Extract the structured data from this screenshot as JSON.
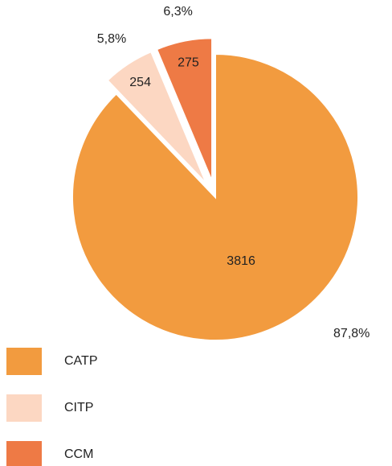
{
  "chart_data": {
    "type": "pie",
    "categories": [
      "CATP",
      "CITP",
      "CCM"
    ],
    "values": [
      3816,
      254,
      275
    ],
    "percentages": [
      87.8,
      5.8,
      6.3
    ],
    "percent_labels": [
      "87,8%",
      "5,8%",
      "6,3%"
    ],
    "colors": [
      "#f29b3f",
      "#fcd7c2",
      "#ee7a45"
    ],
    "legend": "bottom-left"
  }
}
